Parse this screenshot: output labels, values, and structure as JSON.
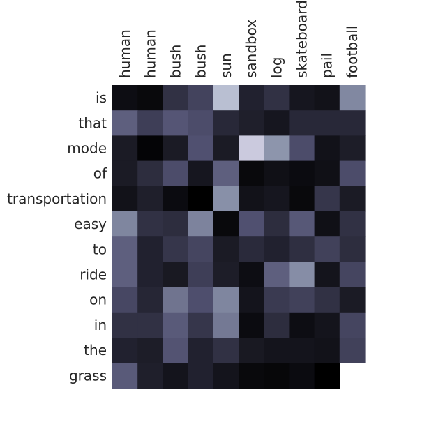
{
  "chart_data": {
    "type": "heatmap",
    "x_labels": [
      "human",
      "human",
      "bush",
      "bush",
      "sun",
      "sandbox",
      "log",
      "skateboard",
      "pail",
      "football"
    ],
    "y_labels": [
      "is",
      "that",
      "mode",
      "of",
      "transportation",
      "easy",
      "to",
      "ride",
      "on",
      "in",
      "the",
      "grass"
    ],
    "colormap": "bone",
    "value_range": [
      0,
      1
    ],
    "values": [
      [
        0.06,
        0.04,
        0.22,
        0.3,
        0.8,
        0.15,
        0.22,
        0.1,
        0.08,
        0.58
      ],
      [
        0.42,
        0.28,
        0.38,
        0.34,
        0.18,
        0.14,
        0.1,
        0.18,
        0.18,
        0.18
      ],
      [
        0.12,
        0.02,
        0.12,
        0.36,
        0.12,
        0.85,
        0.63,
        0.34,
        0.08,
        0.13
      ],
      [
        0.12,
        0.2,
        0.34,
        0.1,
        0.42,
        0.04,
        0.07,
        0.05,
        0.07,
        0.34
      ],
      [
        0.08,
        0.14,
        0.05,
        0.0,
        0.61,
        0.08,
        0.1,
        0.04,
        0.24,
        0.12
      ],
      [
        0.57,
        0.22,
        0.2,
        0.56,
        0.04,
        0.36,
        0.2,
        0.39,
        0.07,
        0.22
      ],
      [
        0.42,
        0.15,
        0.24,
        0.31,
        0.12,
        0.19,
        0.15,
        0.21,
        0.29,
        0.2
      ],
      [
        0.42,
        0.15,
        0.11,
        0.28,
        0.13,
        0.06,
        0.42,
        0.6,
        0.09,
        0.31
      ],
      [
        0.32,
        0.17,
        0.5,
        0.35,
        0.57,
        0.09,
        0.26,
        0.29,
        0.22,
        0.12
      ],
      [
        0.22,
        0.22,
        0.4,
        0.24,
        0.52,
        0.05,
        0.2,
        0.06,
        0.09,
        0.31
      ],
      [
        0.15,
        0.13,
        0.37,
        0.15,
        0.22,
        0.11,
        0.09,
        0.09,
        0.08,
        0.29
      ],
      [
        0.4,
        0.14,
        0.09,
        0.15,
        0.09,
        0.04,
        0.03,
        0.05,
        0.0,
        null
      ]
    ]
  }
}
